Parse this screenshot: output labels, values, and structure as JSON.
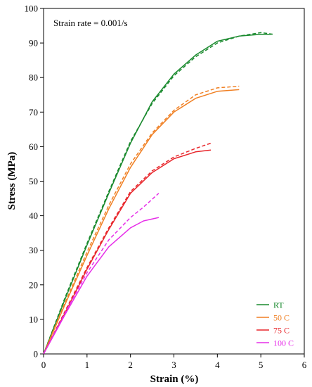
{
  "chart_data": {
    "type": "line",
    "title": "",
    "annotation": "Strain rate = 0.001/s",
    "xlabel": "Strain (%)",
    "ylabel": "Stress (MPa)",
    "xlim": [
      0,
      6
    ],
    "ylim": [
      0,
      100
    ],
    "xticks": [
      "0",
      "1",
      "2",
      "3",
      "4",
      "5",
      "6"
    ],
    "yticks": [
      "0",
      "10",
      "20",
      "30",
      "40",
      "50",
      "60",
      "70",
      "80",
      "90",
      "100"
    ],
    "grid": false,
    "legend_position": "bottom-right",
    "series": [
      {
        "name": "RT",
        "color": "#1a8a2e",
        "solid": {
          "x": [
            0,
            0.5,
            1.0,
            1.5,
            2.0,
            2.5,
            3.0,
            3.5,
            4.0,
            4.5,
            5.0,
            5.25
          ],
          "y": [
            0,
            16,
            31.5,
            46.5,
            61,
            73,
            81,
            86.5,
            90.5,
            92,
            92.5,
            92.5
          ]
        },
        "dashed": {
          "x": [
            0,
            0.5,
            1.0,
            1.5,
            2.0,
            2.5,
            3.0,
            3.5,
            4.0,
            4.5,
            5.0,
            5.3
          ],
          "y": [
            0,
            16.5,
            32,
            47,
            61.5,
            72.5,
            80.5,
            86,
            90,
            92,
            93,
            92.5
          ]
        }
      },
      {
        "name": "50 C",
        "color": "#f07f22",
        "solid": {
          "x": [
            0,
            0.5,
            1.0,
            1.5,
            2.0,
            2.5,
            3.0,
            3.5,
            4.0,
            4.5
          ],
          "y": [
            0,
            14.5,
            28.5,
            42,
            54,
            63.5,
            70,
            74,
            76,
            76.5
          ]
        },
        "dashed": {
          "x": [
            0,
            0.5,
            1.0,
            1.5,
            2.0,
            2.5,
            3.0,
            3.5,
            4.0,
            4.5
          ],
          "y": [
            0,
            15,
            29.5,
            43,
            55,
            64,
            70.5,
            75,
            77,
            77.5
          ]
        }
      },
      {
        "name": "75 C",
        "color": "#e8262b",
        "solid": {
          "x": [
            0,
            0.5,
            1.0,
            1.5,
            2.0,
            2.5,
            3.0,
            3.5,
            3.85
          ],
          "y": [
            0,
            12,
            24.5,
            36,
            46.5,
            52.5,
            56.5,
            58.5,
            59
          ]
        },
        "dashed": {
          "x": [
            0,
            0.5,
            1.0,
            1.5,
            2.0,
            2.5,
            3.0,
            3.5,
            3.85
          ],
          "y": [
            0,
            12.5,
            25,
            36.5,
            47,
            53,
            57,
            59.5,
            61
          ]
        }
      },
      {
        "name": "100 C",
        "color": "#e62ee8",
        "solid": {
          "x": [
            0,
            0.5,
            1.0,
            1.5,
            2.0,
            2.3,
            2.65
          ],
          "y": [
            0,
            11.5,
            22.5,
            31,
            36.5,
            38.5,
            39.5
          ]
        },
        "dashed": {
          "x": [
            0,
            0.5,
            1.0,
            1.5,
            2.0,
            2.3,
            2.65
          ],
          "y": [
            0,
            12,
            23.5,
            33,
            39.5,
            42.5,
            46.5
          ]
        }
      }
    ]
  }
}
